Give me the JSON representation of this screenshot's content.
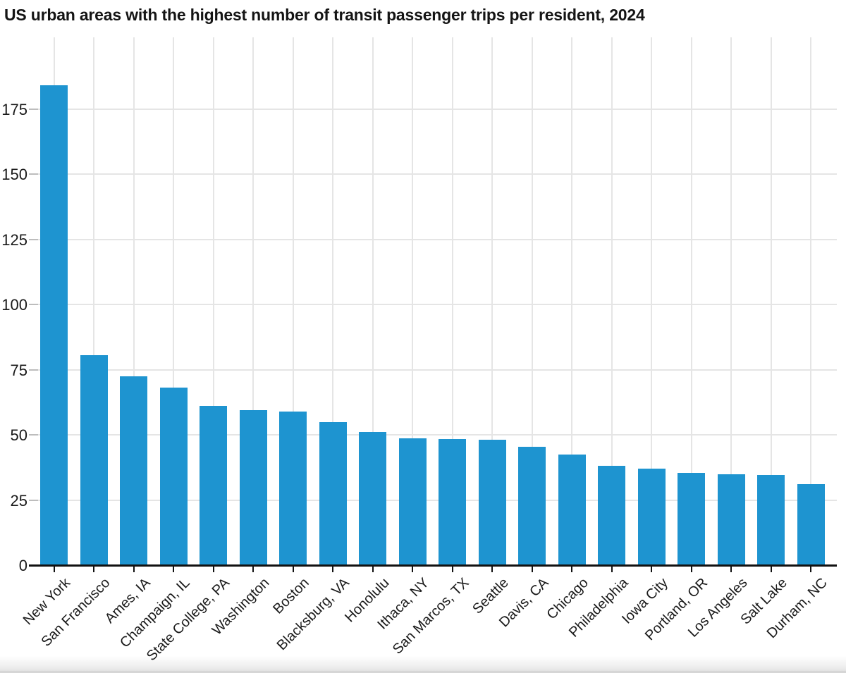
{
  "chart_data": {
    "type": "bar",
    "title": "US urban areas with the highest number of transit passenger trips per resident, 2024",
    "categories": [
      "New York",
      "San Francisco",
      "Ames, IA",
      "Champaign, IL",
      "State College, PA",
      "Washington",
      "Boston",
      "Blacksburg, VA",
      "Honolulu",
      "Ithaca, NY",
      "San Marcos, TX",
      "Seattle",
      "Davis, CA",
      "Chicago",
      "Philadelphia",
      "Iowa City",
      "Portland, OR",
      "Los Angeles",
      "Salt Lake",
      "Durham, NC"
    ],
    "values": [
      184,
      80.5,
      72.5,
      68,
      61,
      59.5,
      59,
      55,
      51,
      48.7,
      48.5,
      48,
      45.5,
      42.5,
      38,
      37,
      35.5,
      35,
      34.5,
      31
    ],
    "xlabel": "",
    "ylabel": "",
    "ylim": [
      0,
      190
    ],
    "yticks": [
      0,
      25,
      50,
      75,
      100,
      125,
      150,
      175
    ],
    "grid": "horizontal-and-vertical",
    "legend_position": "none",
    "x_tick_label_rotation_deg": 45,
    "bar_color": "#1e94d0"
  },
  "colors": {
    "background": "#ffffff",
    "bar": "#1e94d0",
    "gridline": "#e5e5e5",
    "axis": "#111111",
    "text": "#1a1a1a"
  }
}
